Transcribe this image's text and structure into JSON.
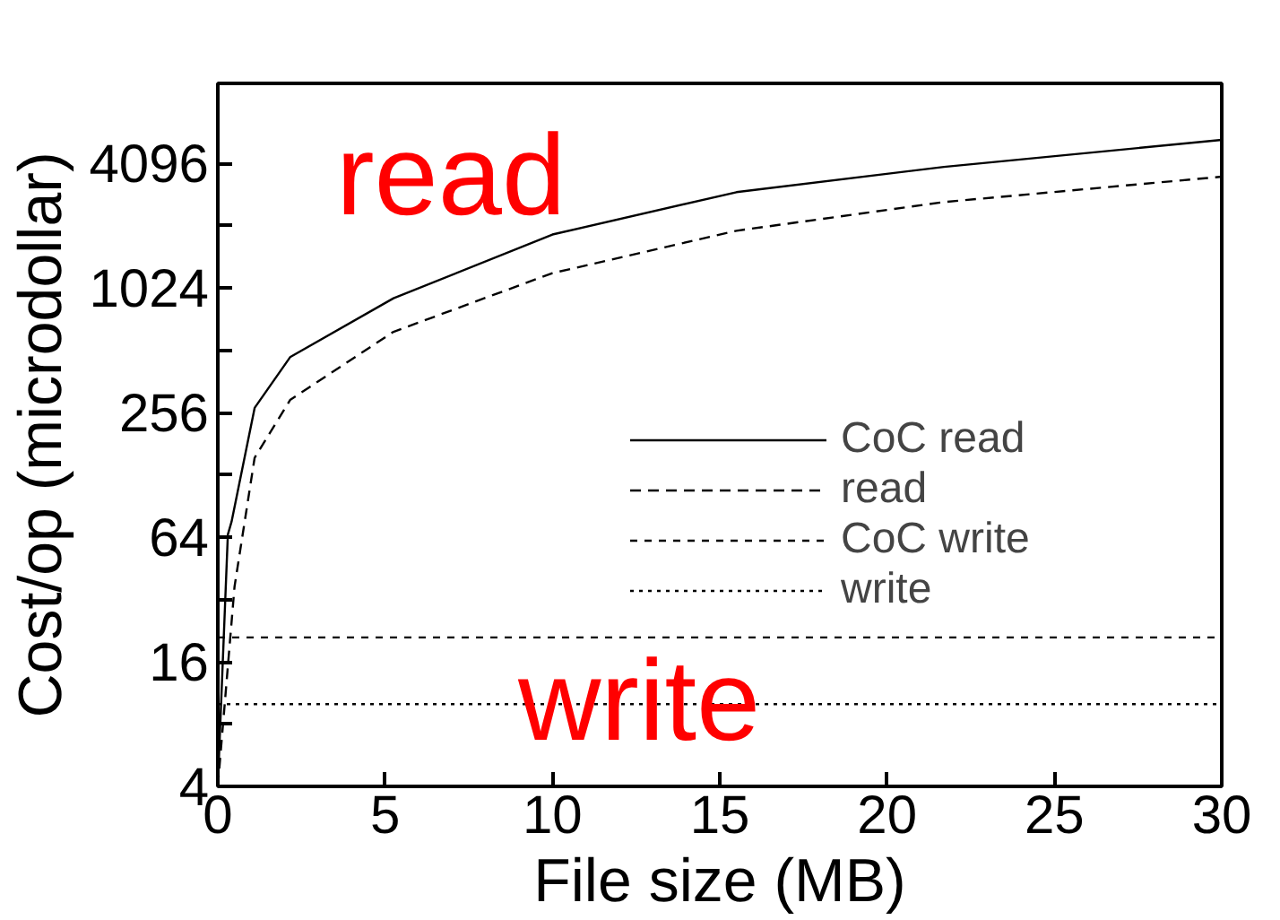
{
  "chart_data": {
    "type": "line",
    "xlabel": "File size (MB)",
    "ylabel": "Cost/op (microdollar)",
    "log": "y",
    "xlim": [
      0,
      30
    ],
    "xticks": [
      0,
      5,
      10,
      15,
      20,
      25,
      30
    ],
    "ylim": [
      4,
      10000
    ],
    "yticks": [
      4,
      {
        "value": 8,
        "label": null
      },
      16,
      {
        "value": 32,
        "label": null
      },
      64,
      {
        "value": 128,
        "label": null
      },
      256,
      {
        "value": 512,
        "label": null
      },
      1024,
      {
        "value": 2048,
        "label": null
      },
      4096
    ],
    "grid": false,
    "legend": "right",
    "marker": "none",
    "series": [
      {
        "name": "CoC read",
        "color": "#000000",
        "line_style": "solid",
        "x": [
          0,
          0.3,
          0.41,
          1.1,
          2.16,
          5.25,
          10,
          15.5,
          21.7,
          30
        ],
        "values": [
          4,
          66,
          76,
          270,
          475,
          915,
          1860,
          2980,
          3950,
          5330
        ]
      },
      {
        "name": "read",
        "color": "#000000",
        "line_style": "dashed",
        "x": [
          0,
          0.5,
          1.1,
          2.16,
          5.25,
          10,
          15.5,
          21.7,
          30
        ],
        "values": [
          4,
          37,
          155,
          295,
          630,
          1210,
          1940,
          2670,
          3540
        ]
      },
      {
        "name": "CoC write",
        "color": "#000000",
        "line_style": "dashed",
        "x": [
          0,
          30
        ],
        "values": [
          21,
          21
        ]
      },
      {
        "name": "write",
        "color": "#000000",
        "line_style": "dotted",
        "x": [
          0,
          30
        ],
        "values": [
          10,
          10
        ]
      }
    ],
    "annotations": [
      "read",
      "write"
    ]
  }
}
